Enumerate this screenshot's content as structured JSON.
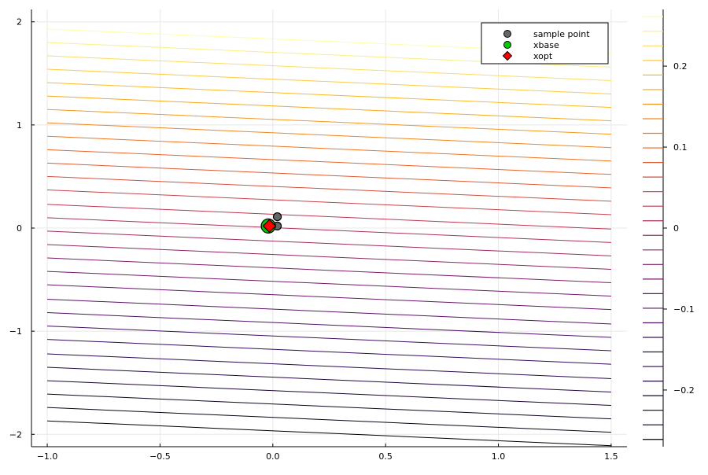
{
  "chart_data": {
    "type": "contour",
    "title": "",
    "xlabel": "",
    "ylabel": "",
    "xlim": [
      -1.07,
      1.57
    ],
    "ylim": [
      -2.12,
      2.12
    ],
    "x_ticks": [
      -1.0,
      -0.5,
      0.0,
      0.5,
      1.0,
      1.5
    ],
    "x_tick_labels": [
      "−1.0",
      "−0.5",
      "0.0",
      "0.5",
      "1.0",
      "1.5"
    ],
    "y_ticks": [
      -2,
      -1,
      0,
      1,
      2
    ],
    "y_tick_labels": [
      "−2",
      "−1",
      "0",
      "1",
      "2"
    ],
    "grid": true,
    "contour_domain_x": [
      -1.0,
      1.5
    ],
    "contour_levels": {
      "y_at_x_min": [
        -1.87,
        -1.74,
        -1.61,
        -1.48,
        -1.35,
        -1.22,
        -1.08,
        -0.95,
        -0.82,
        -0.69,
        -0.55,
        -0.42,
        -0.29,
        -0.16,
        -0.03,
        0.1,
        0.23,
        0.37,
        0.5,
        0.63,
        0.76,
        0.89,
        1.02,
        1.15,
        1.28,
        1.41,
        1.54,
        1.67,
        1.8,
        1.93
      ],
      "slope": -0.04
    },
    "colorbar": {
      "range": [
        -0.27,
        0.27
      ],
      "ticks": [
        -0.2,
        -0.1,
        0,
        0.1,
        0.2
      ],
      "tick_labels": [
        "−0.2",
        "−0.1",
        "0",
        "0.1",
        "0.2"
      ],
      "colormap": "inferno"
    },
    "series": [
      {
        "name": "sample point",
        "marker": "circle",
        "color": "#666666",
        "points": [
          [
            0.02,
            0.11
          ],
          [
            0.02,
            0.02
          ],
          [
            -0.02,
            0.02
          ]
        ]
      },
      {
        "name": "xbase",
        "marker": "circle",
        "color": "#00cc00",
        "points": [
          [
            -0.02,
            0.02
          ]
        ]
      },
      {
        "name": "xopt",
        "marker": "diamond",
        "color": "#ff0000",
        "points": [
          [
            -0.015,
            0.02
          ]
        ]
      }
    ],
    "legend": {
      "position": "top-right",
      "entries": [
        "sample point",
        "xbase",
        "xopt"
      ]
    }
  }
}
